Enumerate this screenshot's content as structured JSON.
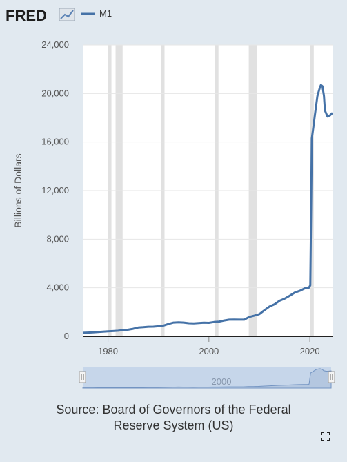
{
  "header": {
    "logo_text": "FRED",
    "legend_label": "M1"
  },
  "colors": {
    "series": "#4572a7",
    "recession": "#e1e1e1",
    "background": "#e1e9f0",
    "plot": "#ffffff"
  },
  "source_lines": [
    "Source: Board of Governors of the Federal",
    "Reserve System (US)"
  ],
  "navigator": {
    "label": "2000"
  },
  "chart_data": {
    "type": "line",
    "title": "",
    "xlabel": "",
    "ylabel": "Billions of Dollars",
    "xlim": [
      1975,
      2024.5
    ],
    "ylim": [
      0,
      24000
    ],
    "x_ticks": [
      1980,
      2000,
      2020
    ],
    "y_ticks": [
      0,
      4000,
      8000,
      12000,
      16000,
      20000,
      24000
    ],
    "y_tick_labels": [
      "0",
      "4,000",
      "8,000",
      "12,000",
      "16,000",
      "20,000",
      "24,000"
    ],
    "x_tick_labels": [
      "1980",
      "2000",
      "2020"
    ],
    "grid": "horizontal",
    "legend_position": "top-left",
    "recessions": [
      [
        1980.0,
        1980.5
      ],
      [
        1981.5,
        1982.9
      ],
      [
        1990.5,
        1991.2
      ],
      [
        2001.2,
        2001.9
      ],
      [
        2007.9,
        2009.5
      ],
      [
        2020.1,
        2020.4
      ]
    ],
    "series": [
      {
        "name": "M1",
        "x": [
          1975,
          1976,
          1977,
          1978,
          1979,
          1980,
          1981,
          1982,
          1983,
          1984,
          1985,
          1986,
          1987,
          1988,
          1989,
          1990,
          1991,
          1992,
          1993,
          1994,
          1995,
          1996,
          1997,
          1998,
          1999,
          2000,
          2001,
          2002,
          2003,
          2004,
          2005,
          2006,
          2007,
          2008,
          2009,
          2010,
          2011,
          2012,
          2013,
          2014,
          2015,
          2016,
          2017,
          2018,
          2019,
          2019.8,
          2020.1,
          2020.25,
          2020.4,
          2020.7,
          2021,
          2021.5,
          2022.0,
          2022.2,
          2022.5,
          2022.8,
          2023,
          2023.5,
          2024,
          2024.5
        ],
        "values": [
          290,
          305,
          330,
          360,
          385,
          410,
          430,
          460,
          510,
          545,
          620,
          720,
          750,
          790,
          795,
          830,
          890,
          1020,
          1130,
          1150,
          1130,
          1080,
          1070,
          1090,
          1120,
          1110,
          1180,
          1210,
          1300,
          1370,
          1380,
          1370,
          1370,
          1600,
          1700,
          1830,
          2150,
          2450,
          2640,
          2930,
          3100,
          3340,
          3600,
          3750,
          3950,
          4000,
          4200,
          10000,
          16300,
          17200,
          18200,
          19800,
          20500,
          20700,
          20600,
          19800,
          18600,
          18100,
          18200,
          18400
        ]
      }
    ]
  }
}
